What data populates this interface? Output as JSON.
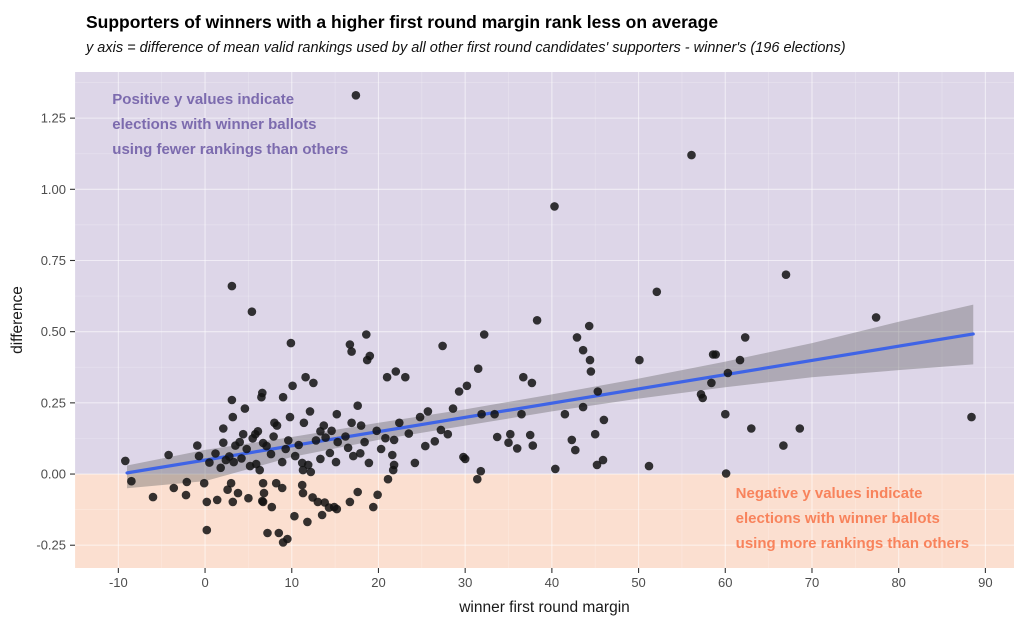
{
  "title": "Supporters of winners with a higher first round margin rank less on average",
  "subtitle": "y axis = difference of mean valid rankings used by all other first round candidates' supporters - winner's (196 elections)",
  "chart_data": {
    "type": "scatter",
    "n_points": 196,
    "xlabel": "winner first round margin",
    "ylabel": "difference",
    "x_ticks": [
      -10,
      0,
      10,
      20,
      30,
      40,
      50,
      60,
      70,
      80,
      90
    ],
    "y_ticks": [
      -0.25,
      0.0,
      0.25,
      0.5,
      0.75,
      1.0,
      1.25
    ],
    "y_tick_labels": [
      "-0.25",
      "0.00",
      "0.25",
      "0.50",
      "0.75",
      "1.00",
      "1.25"
    ],
    "x_minor_ticks": [
      -15,
      -5,
      5,
      15,
      25,
      35,
      45,
      55,
      65,
      75,
      85
    ],
    "y_minor_ticks": [
      -0.125,
      0.125,
      0.375,
      0.625,
      0.875,
      1.125,
      1.375
    ],
    "x_domain": [
      -15,
      93.3
    ],
    "y_domain": [
      -0.33,
      1.412
    ],
    "grid": true,
    "legend": false,
    "colors": {
      "positive_region": "#DDD6E8",
      "negative_region": "#FBDFD0",
      "grid_major": "rgba(255,255,255,0.55)",
      "grid_minor": "rgba(255,255,255,0.28)",
      "point": "#121212",
      "trend_line": "#3F64E6",
      "band": "rgba(96,96,96,0.38)",
      "tick": "#333333",
      "annotation_positive": "#7C6BAE",
      "annotation_negative": "#F8835C"
    },
    "trend_line": {
      "x1": -9,
      "y1": 0.004,
      "x2": 88.6,
      "y2": 0.492
    },
    "confidence_band": [
      [
        -9,
        0.03,
        -0.05
      ],
      [
        0,
        0.085,
        -0.025
      ],
      [
        10,
        0.13,
        0.06
      ],
      [
        20,
        0.18,
        0.12
      ],
      [
        30,
        0.227,
        0.17
      ],
      [
        40,
        0.28,
        0.22
      ],
      [
        50,
        0.335,
        0.265
      ],
      [
        60,
        0.395,
        0.305
      ],
      [
        70,
        0.46,
        0.34
      ],
      [
        80,
        0.535,
        0.365
      ],
      [
        88.6,
        0.595,
        0.385
      ]
    ],
    "annotations": [
      {
        "id": "positive-note",
        "x": -10.7,
        "y": 1.3,
        "lines": [
          "Positive y values indicate",
          "elections with winner ballots",
          "using fewer rankings than others"
        ],
        "color": "#7C6BAE"
      },
      {
        "id": "negative-note",
        "x": 61.2,
        "y": -0.084,
        "lines": [
          "Negative y values indicate",
          "elections with winner ballots",
          "using more rankings than others"
        ],
        "color": "#F8835C"
      }
    ],
    "points": [
      [
        17.4,
        1.33
      ],
      [
        56.1,
        1.12
      ],
      [
        40.3,
        0.94
      ],
      [
        67,
        0.7
      ],
      [
        52.1,
        0.64
      ],
      [
        3.1,
        0.66
      ],
      [
        5.4,
        0.57
      ],
      [
        77.4,
        0.55
      ],
      [
        38.3,
        0.54
      ],
      [
        44.3,
        0.52
      ],
      [
        32.2,
        0.49
      ],
      [
        18.6,
        0.49
      ],
      [
        42.9,
        0.48
      ],
      [
        62.3,
        0.48
      ],
      [
        9.9,
        0.46
      ],
      [
        16.7,
        0.455
      ],
      [
        27.4,
        0.45
      ],
      [
        16.9,
        0.43
      ],
      [
        43.6,
        0.435
      ],
      [
        58.9,
        0.42
      ],
      [
        58.6,
        0.42
      ],
      [
        19,
        0.415
      ],
      [
        18.7,
        0.4
      ],
      [
        44.4,
        0.4
      ],
      [
        50.1,
        0.4
      ],
      [
        61.7,
        0.4
      ],
      [
        12.5,
        0.32
      ],
      [
        11.6,
        0.34
      ],
      [
        10.1,
        0.31
      ],
      [
        22,
        0.36
      ],
      [
        21,
        0.34
      ],
      [
        23.1,
        0.34
      ],
      [
        31.5,
        0.37
      ],
      [
        36.7,
        0.34
      ],
      [
        37.7,
        0.32
      ],
      [
        29.3,
        0.29
      ],
      [
        30.2,
        0.31
      ],
      [
        58.4,
        0.32
      ],
      [
        57.2,
        0.28
      ],
      [
        45.3,
        0.29
      ],
      [
        60.3,
        0.355
      ],
      [
        44.5,
        0.36
      ],
      [
        6.6,
        0.285
      ],
      [
        6.5,
        0.27
      ],
      [
        9,
        0.27
      ],
      [
        3.1,
        0.26
      ],
      [
        57.4,
        0.267
      ],
      [
        4.6,
        0.23
      ],
      [
        43.6,
        0.235
      ],
      [
        25.7,
        0.22
      ],
      [
        28.6,
        0.23
      ],
      [
        31.9,
        0.21
      ],
      [
        33.4,
        0.21
      ],
      [
        36.5,
        0.21
      ],
      [
        41.5,
        0.21
      ],
      [
        3.2,
        0.2
      ],
      [
        12.1,
        0.22
      ],
      [
        9.8,
        0.2
      ],
      [
        15.2,
        0.21
      ],
      [
        60,
        0.21
      ],
      [
        11.4,
        0.18
      ],
      [
        8,
        0.18
      ],
      [
        8.3,
        0.17
      ],
      [
        16.9,
        0.18
      ],
      [
        17.6,
        0.24
      ],
      [
        18,
        0.17
      ],
      [
        2.1,
        0.16
      ],
      [
        4.4,
        0.14
      ],
      [
        5.8,
        0.14
      ],
      [
        13.7,
        0.17
      ],
      [
        13.3,
        0.15
      ],
      [
        22.4,
        0.18
      ],
      [
        46,
        0.19
      ],
      [
        63,
        0.16
      ],
      [
        68.6,
        0.16
      ],
      [
        88.4,
        0.2
      ],
      [
        27.2,
        0.155
      ],
      [
        28,
        0.14
      ],
      [
        33.7,
        0.13
      ],
      [
        35.2,
        0.14
      ],
      [
        45,
        0.14
      ],
      [
        24.8,
        0.2
      ],
      [
        37.5,
        0.137
      ],
      [
        37.8,
        0.1
      ],
      [
        42.3,
        0.12
      ],
      [
        42.7,
        0.084
      ],
      [
        36,
        0.09
      ],
      [
        66.7,
        0.1
      ],
      [
        21.6,
        0.067
      ],
      [
        29.8,
        0.06
      ],
      [
        20.8,
        0.126
      ],
      [
        21.8,
        0.12
      ],
      [
        26.5,
        0.115
      ],
      [
        35,
        0.11
      ],
      [
        -0.9,
        0.1
      ],
      [
        2.1,
        0.11
      ],
      [
        3.5,
        0.1
      ],
      [
        4,
        0.112
      ],
      [
        6.7,
        0.109
      ],
      [
        15.3,
        0.112
      ],
      [
        13.3,
        0.053
      ],
      [
        14.4,
        0.074
      ],
      [
        30,
        0.053
      ],
      [
        -4.2,
        0.067
      ],
      [
        -0.7,
        0.063
      ],
      [
        7.6,
        0.07
      ],
      [
        -9.2,
        0.046
      ],
      [
        2.4,
        0.049
      ],
      [
        3.3,
        0.042
      ],
      [
        5.2,
        0.028
      ],
      [
        5.9,
        0.035
      ],
      [
        6.3,
        0.014
      ],
      [
        8.9,
        0.042
      ],
      [
        11.3,
        0.014
      ],
      [
        11.2,
        0.039
      ],
      [
        11.9,
        0.032
      ],
      [
        12.2,
        0.007
      ],
      [
        15.1,
        0.042
      ],
      [
        17.1,
        0.063
      ],
      [
        18.9,
        0.039
      ],
      [
        21.8,
        0.032
      ],
      [
        24.2,
        0.039
      ],
      [
        31.8,
        0.01
      ],
      [
        40.4,
        0.018
      ],
      [
        45.2,
        0.032
      ],
      [
        45.9,
        0.049
      ],
      [
        51.2,
        0.028
      ],
      [
        60.1,
        0.002
      ],
      [
        21.7,
        0.014
      ],
      [
        -8.5,
        -0.025
      ],
      [
        -6,
        -0.081
      ],
      [
        -3.6,
        -0.049
      ],
      [
        -2.2,
        -0.074
      ],
      [
        -2.1,
        -0.028
      ],
      [
        -0.1,
        -0.032
      ],
      [
        0.2,
        -0.098
      ],
      [
        1.4,
        -0.091
      ],
      [
        0.2,
        -0.197
      ],
      [
        3,
        -0.032
      ],
      [
        3.2,
        -0.098
      ],
      [
        3.8,
        -0.067
      ],
      [
        6.7,
        -0.032
      ],
      [
        6.8,
        -0.067
      ],
      [
        6.7,
        -0.098
      ],
      [
        7.7,
        -0.116
      ],
      [
        8.2,
        -0.032
      ],
      [
        8.9,
        -0.049
      ],
      [
        7.2,
        -0.207
      ],
      [
        8.5,
        -0.207
      ],
      [
        9.5,
        -0.228
      ],
      [
        9,
        -0.24
      ],
      [
        11.2,
        -0.039
      ],
      [
        11.3,
        -0.067
      ],
      [
        11.8,
        -0.168
      ],
      [
        13,
        -0.098
      ],
      [
        13.5,
        -0.144
      ],
      [
        14.3,
        -0.118
      ],
      [
        14.9,
        -0.116
      ],
      [
        16.7,
        -0.098
      ],
      [
        17.6,
        -0.063
      ],
      [
        19.4,
        -0.116
      ],
      [
        21.1,
        -0.018
      ],
      [
        31.4,
        -0.018
      ],
      [
        6.6,
        -0.095
      ],
      [
        13.8,
        -0.1
      ],
      [
        15.2,
        -0.123
      ],
      [
        0.5,
        0.04
      ],
      [
        1.2,
        0.072
      ],
      [
        1.8,
        0.022
      ],
      [
        2.8,
        0.062
      ],
      [
        4.2,
        0.055
      ],
      [
        4.8,
        0.088
      ],
      [
        5.5,
        0.125
      ],
      [
        6.1,
        0.15
      ],
      [
        7.1,
        0.098
      ],
      [
        7.9,
        0.132
      ],
      [
        9.3,
        0.088
      ],
      [
        9.6,
        0.118
      ],
      [
        10.4,
        0.063
      ],
      [
        10.8,
        0.102
      ],
      [
        12.8,
        0.118
      ],
      [
        13.9,
        0.128
      ],
      [
        14.6,
        0.152
      ],
      [
        16.2,
        0.132
      ],
      [
        16.5,
        0.092
      ],
      [
        17.9,
        0.073
      ],
      [
        18.4,
        0.112
      ],
      [
        19.8,
        0.152
      ],
      [
        20.3,
        0.088
      ],
      [
        23.5,
        0.142
      ],
      [
        25.4,
        0.098
      ],
      [
        2.6,
        -0.055
      ],
      [
        5,
        -0.085
      ],
      [
        10.3,
        -0.148
      ],
      [
        12.4,
        -0.082
      ],
      [
        19.9,
        -0.073
      ]
    ]
  }
}
